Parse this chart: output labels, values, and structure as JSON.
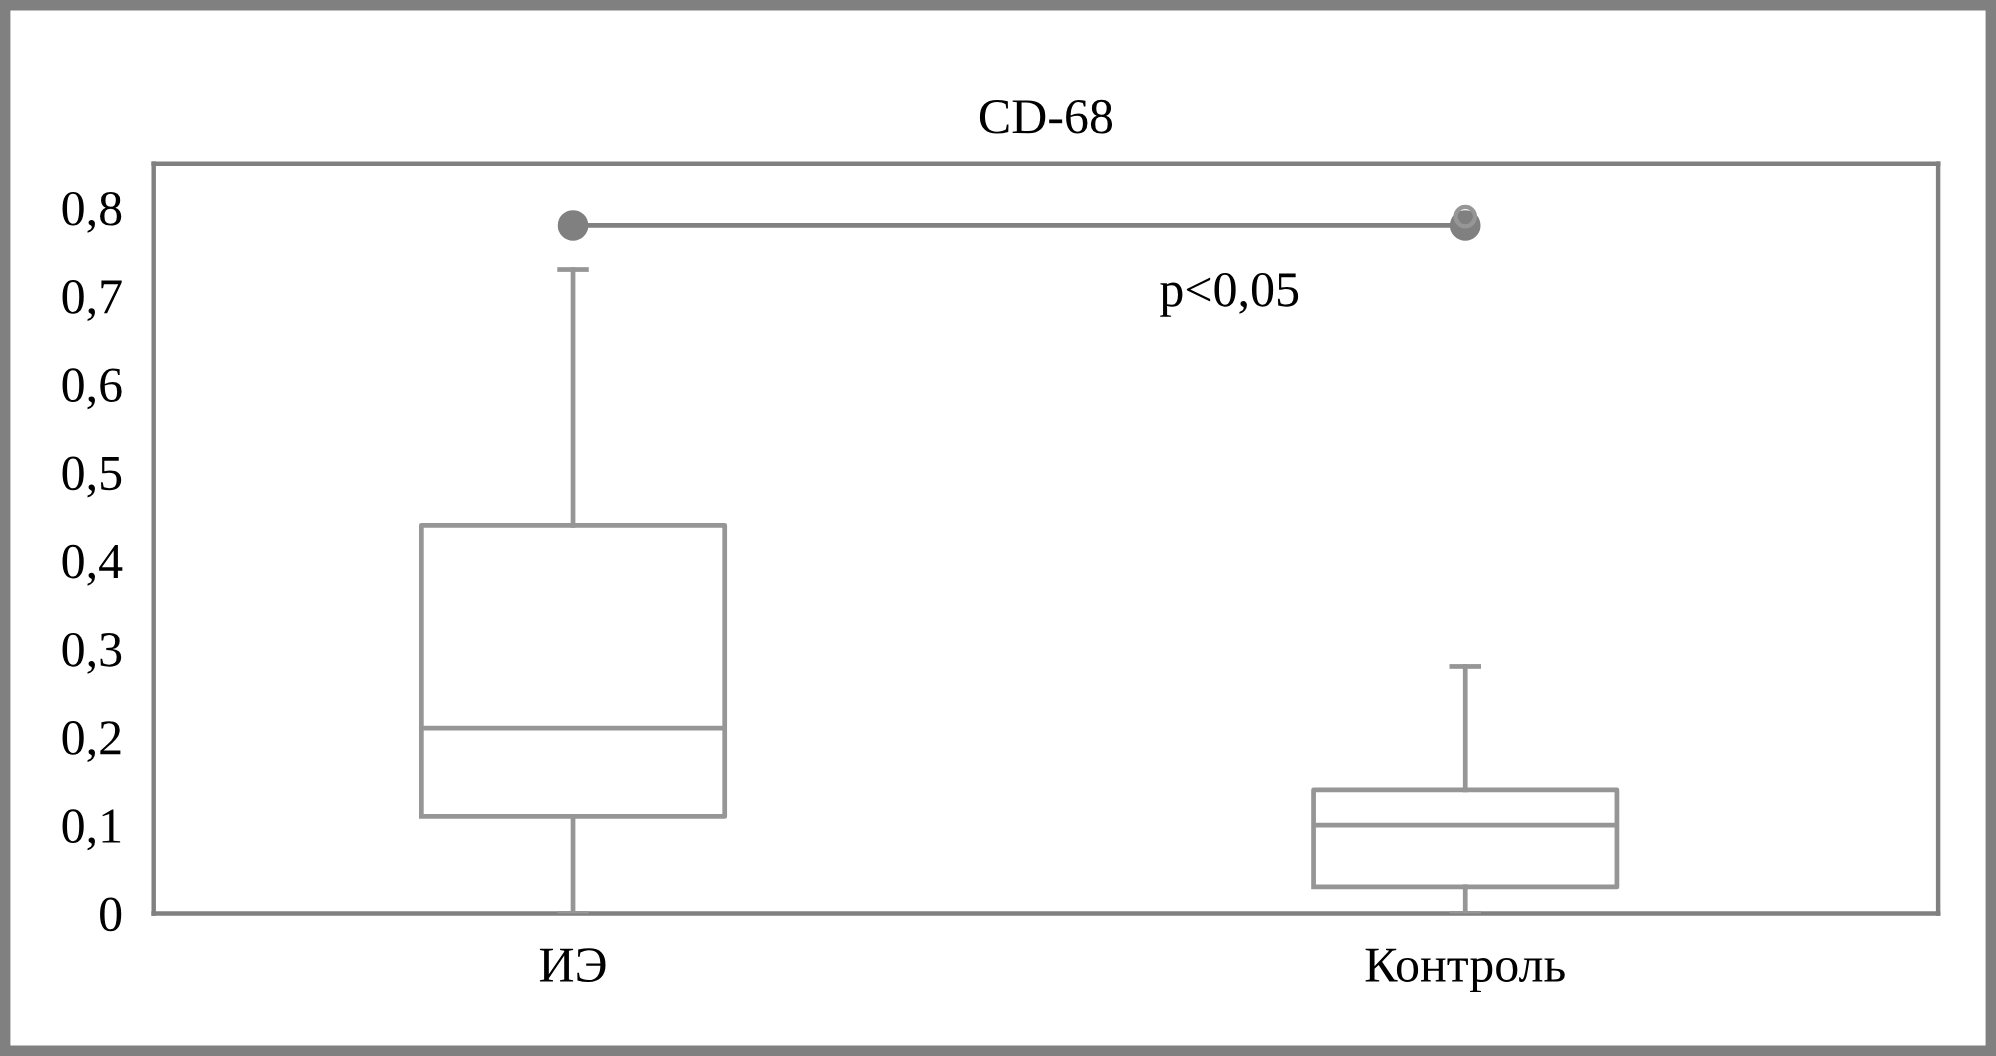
{
  "chart_data": {
    "type": "box",
    "title": "CD-68",
    "categories": [
      "ИЭ",
      "Контроль"
    ],
    "ylim": [
      0,
      0.85
    ],
    "yticks": [
      0,
      {
        "value": 0.1,
        "label": "0,1"
      },
      {
        "value": 0.2,
        "label": "0,2"
      },
      {
        "value": 0.3,
        "label": "0,3"
      },
      {
        "value": 0.4,
        "label": "0,4"
      },
      {
        "value": 0.5,
        "label": "0,5"
      },
      {
        "value": 0.6,
        "label": "0,6"
      },
      {
        "value": 0.7,
        "label": "0,7"
      },
      {
        "value": 0.8,
        "label": "0,8"
      }
    ],
    "series": [
      {
        "color": "#969696",
        "boxes": [
          {
            "low": 0,
            "q1": 0.11,
            "median": 0.21,
            "q3": 0.44,
            "high": 0.73
          },
          {
            "low": 0,
            "q1": 0.03,
            "median": 0.1,
            "q3": 0.14,
            "high": 0.28,
            "outliers": [
              0.79
            ]
          }
        ]
      },
      {
        "type": "line",
        "x": [
          "ИЭ",
          "Контроль"
        ],
        "values": [
          0.78,
          0.78
        ],
        "color": "#808080",
        "marker": "circle"
      }
    ],
    "annotations": [
      "p<0,05"
    ]
  }
}
